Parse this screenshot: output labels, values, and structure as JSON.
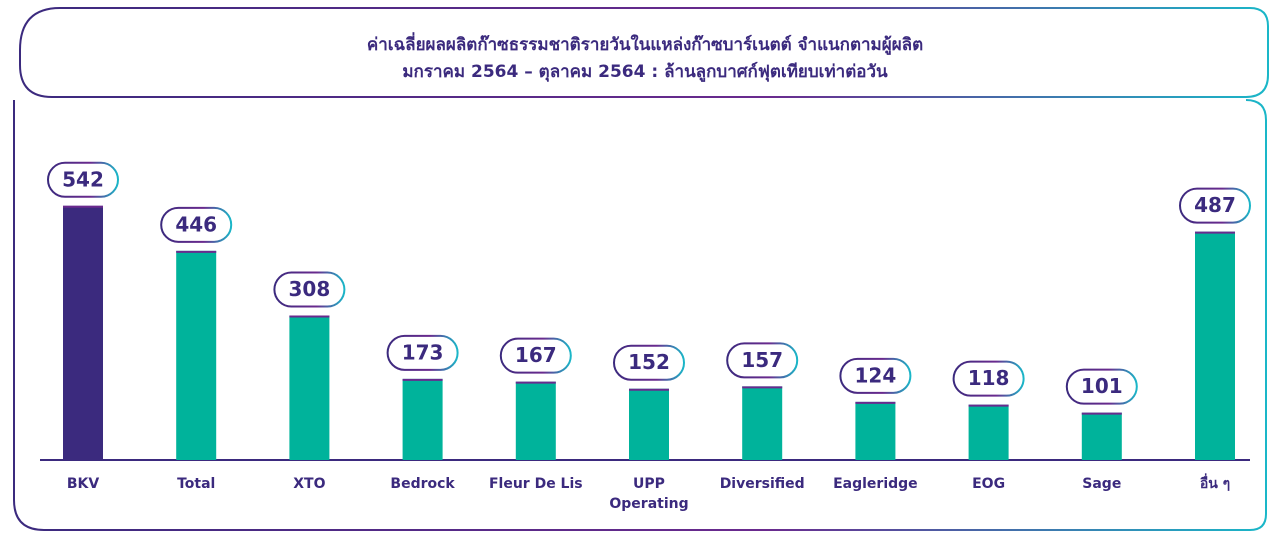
{
  "chart_data": {
    "type": "bar",
    "title": "ค่าเฉลี่ยผลผลิตก๊าซธรรมชาติรายวันในแหล่งก๊าซบาร์เนตต์ จำแนกตามผู้ผลิต",
    "subtitle": "มกราคม 2564 – ตุลาคม 2564  : ล้านลูกบาศก์ฟุตเทียบเท่าต่อวัน",
    "categories": [
      "BKV",
      "Total",
      "XTO",
      "Bedrock",
      "Fleur De Lis",
      "UPP Operating",
      "Diversified",
      "Eagleridge",
      "EOG",
      "Sage",
      "อื่น ๆ"
    ],
    "values": [
      542,
      446,
      308,
      173,
      167,
      152,
      157,
      124,
      118,
      101,
      487
    ],
    "colors": [
      "#3b2a7e",
      "#00b39b",
      "#00b39b",
      "#00b39b",
      "#00b39b",
      "#00b39b",
      "#00b39b",
      "#00b39b",
      "#00b39b",
      "#00b39b",
      "#00b39b"
    ]
  }
}
